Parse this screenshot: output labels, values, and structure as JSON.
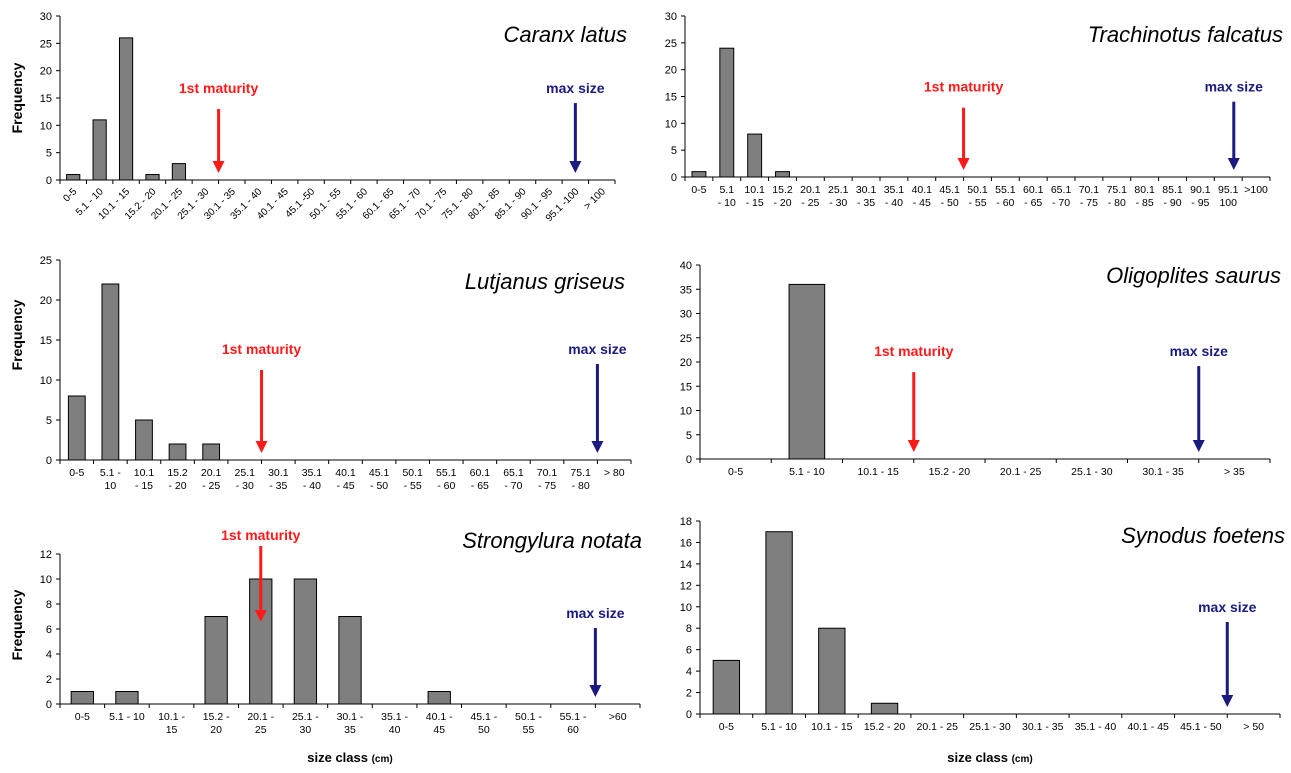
{
  "colors": {
    "bar": "#7f7f7f",
    "maturity": "#ff1a1a",
    "max": "#1a1a80",
    "axis": "#000000"
  },
  "chart_data": [
    {
      "type": "bar",
      "title": "Caranx latus",
      "ylabel": "Frequency",
      "xlabel": "",
      "ylim": [
        0,
        30
      ],
      "yticks": [
        0,
        5,
        10,
        15,
        20,
        25,
        30
      ],
      "tick_style": "rotated",
      "categories": [
        "0-5",
        "5.1 - 10",
        "10.1 - 15",
        "15.2 - 20",
        "20.1 - 25",
        "25.1 - 30",
        "30.1 - 35",
        "35.1 - 40",
        "40.1 - 45",
        "45.1 -50",
        "50.1 - 55",
        "55.1 - 60",
        "60.1 - 65",
        "65.1 - 70",
        "70.1 - 75",
        "75.1 - 80",
        "80.1 - 85",
        "85.1 - 90",
        "90.1 - 95",
        "95.1 -100",
        "> 100"
      ],
      "values": [
        1,
        11,
        26,
        1,
        3,
        0,
        0,
        0,
        0,
        0,
        0,
        0,
        0,
        0,
        0,
        0,
        0,
        0,
        0,
        0,
        0
      ],
      "annotations": {
        "maturity_label": "1st maturity",
        "maturity_at": 6,
        "max_label": "max size",
        "max_at": 19.5
      }
    },
    {
      "type": "bar",
      "title": "Trachinotus falcatus",
      "ylabel": "",
      "xlabel": "",
      "ylim": [
        0,
        30
      ],
      "yticks": [
        0,
        5,
        10,
        15,
        20,
        25,
        30
      ],
      "tick_style": "two-line",
      "categories": [
        "0-5",
        "5.1\n- 10",
        "10.1\n- 15",
        "15.2\n- 20",
        "20.1\n- 25",
        "25.1\n- 30",
        "30.1\n- 35",
        "35.1\n- 40",
        "40.1\n- 45",
        "45.1\n- 50",
        "50.1\n- 55",
        "55.1\n- 60",
        "60.1\n- 65",
        "65.1\n- 70",
        "70.1\n- 75",
        "75.1\n- 80",
        "80.1\n- 85",
        "85.1\n- 90",
        "90.1\n- 95",
        "95.1\n100",
        ">100"
      ],
      "values": [
        1,
        24,
        8,
        1,
        0,
        0,
        0,
        0,
        0,
        0,
        0,
        0,
        0,
        0,
        0,
        0,
        0,
        0,
        0,
        0,
        0
      ],
      "annotations": {
        "maturity_label": "1st maturity",
        "maturity_at": 10,
        "max_label": "max size",
        "max_at": 19.7
      }
    },
    {
      "type": "bar",
      "title": "Lutjanus griseus",
      "ylabel": "Frequency",
      "xlabel": "",
      "ylim": [
        0,
        25
      ],
      "yticks": [
        0,
        5,
        10,
        15,
        20,
        25
      ],
      "tick_style": "two-line",
      "categories": [
        "0-5",
        "5.1 -\n10",
        "10.1\n- 15",
        "15.2\n- 20",
        "20.1\n- 25",
        "25.1\n- 30",
        "30.1\n- 35",
        "35.1\n- 40",
        "40.1\n- 45",
        "45.1\n- 50",
        "50.1\n- 55",
        "55.1\n- 60",
        "60.1\n- 65",
        "65.1\n- 70",
        "70.1\n- 75",
        "75.1\n- 80",
        "> 80"
      ],
      "values": [
        8,
        22,
        5,
        2,
        2,
        0,
        0,
        0,
        0,
        0,
        0,
        0,
        0,
        0,
        0,
        0,
        0
      ],
      "annotations": {
        "maturity_label": "1st maturity",
        "maturity_at": 6,
        "max_label": "max size",
        "max_at": 16
      }
    },
    {
      "type": "bar",
      "title": "Oligoplites saurus",
      "ylabel": "",
      "xlabel": "",
      "ylim": [
        0,
        40
      ],
      "yticks": [
        0,
        5,
        10,
        15,
        20,
        25,
        30,
        35,
        40
      ],
      "tick_style": "one-line",
      "categories": [
        "0-5",
        "5.1 - 10",
        "10.1 - 15",
        "15.2 - 20",
        "20.1 - 25",
        "25.1 - 30",
        "30.1 - 35",
        "> 35"
      ],
      "values": [
        0,
        36,
        0,
        0,
        0,
        0,
        0,
        0
      ],
      "annotations": {
        "maturity_label": "1st maturity",
        "maturity_at": 3,
        "max_label": "max size",
        "max_at": 7
      }
    },
    {
      "type": "bar",
      "title": "Strongylura notata",
      "ylabel": "Frequency",
      "xlabel": "size class",
      "xlabel_unit": "(cm)",
      "ylim": [
        0,
        12
      ],
      "yticks": [
        0,
        2,
        4,
        6,
        8,
        10,
        12
      ],
      "tick_style": "two-line",
      "categories": [
        "0-5",
        "5.1 - 10",
        "10.1 -\n15",
        "15.2 -\n20",
        "20.1 -\n25",
        "25.1 -\n30",
        "30.1 -\n35",
        "35.1 -\n40",
        "40.1 -\n45",
        "45.1 -\n50",
        "50.1 -\n55",
        "55.1 -\n60",
        ">60"
      ],
      "values": [
        1,
        1,
        0,
        7,
        10,
        10,
        7,
        0,
        1,
        0,
        0,
        0,
        0
      ],
      "annotations": {
        "maturity_label": "1st maturity",
        "maturity_at": 4.5,
        "max_label": "max size",
        "max_at": 12
      }
    },
    {
      "type": "bar",
      "title": "Synodus foetens",
      "ylabel": "",
      "xlabel": "size class",
      "xlabel_unit": "(cm)",
      "ylim": [
        0,
        18
      ],
      "yticks": [
        0,
        2,
        4,
        6,
        8,
        10,
        12,
        14,
        16,
        18
      ],
      "tick_style": "one-line",
      "categories": [
        "0-5",
        "5.1 - 10",
        "10.1 - 15",
        "15.2 - 20",
        "20.1 - 25",
        "25.1 - 30",
        "30.1 - 35",
        "35.1 - 40",
        "40.1 - 45",
        "45.1 - 50",
        "> 50"
      ],
      "values": [
        5,
        17,
        8,
        1,
        0,
        0,
        0,
        0,
        0,
        0,
        0
      ],
      "annotations": {
        "max_label": "max size",
        "max_at": 10
      }
    }
  ]
}
